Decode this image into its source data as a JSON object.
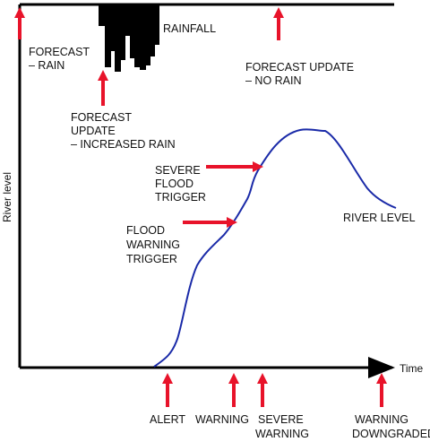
{
  "axes": {
    "x_label": "Time",
    "y_label": "River level"
  },
  "series": {
    "rainfall_label": "RAINFALL",
    "river_label": "RIVER LEVEL"
  },
  "events_top": [
    {
      "lines": [
        "FORECAST",
        "– RAIN"
      ]
    },
    {
      "lines": [
        "FORECAST",
        "UPDATE",
        "– INCREASED RAIN"
      ]
    },
    {
      "lines": [
        "FORECAST UPDATE",
        "– NO RAIN"
      ]
    }
  ],
  "triggers": [
    {
      "lines": [
        "SEVERE",
        "FLOOD",
        "TRIGGER"
      ]
    },
    {
      "lines": [
        "FLOOD",
        "WARNING",
        "TRIGGER"
      ]
    }
  ],
  "events_bottom": [
    {
      "lines": [
        "ALERT"
      ]
    },
    {
      "lines": [
        "WARNING"
      ]
    },
    {
      "lines": [
        "SEVERE",
        "WARNING"
      ]
    },
    {
      "lines": [
        "WARNING",
        "DOWNGRADED"
      ]
    }
  ],
  "colors": {
    "arrow": "#e8132a",
    "river": "#1a2aa8",
    "rain": "#000000",
    "axis": "#000000"
  }
}
